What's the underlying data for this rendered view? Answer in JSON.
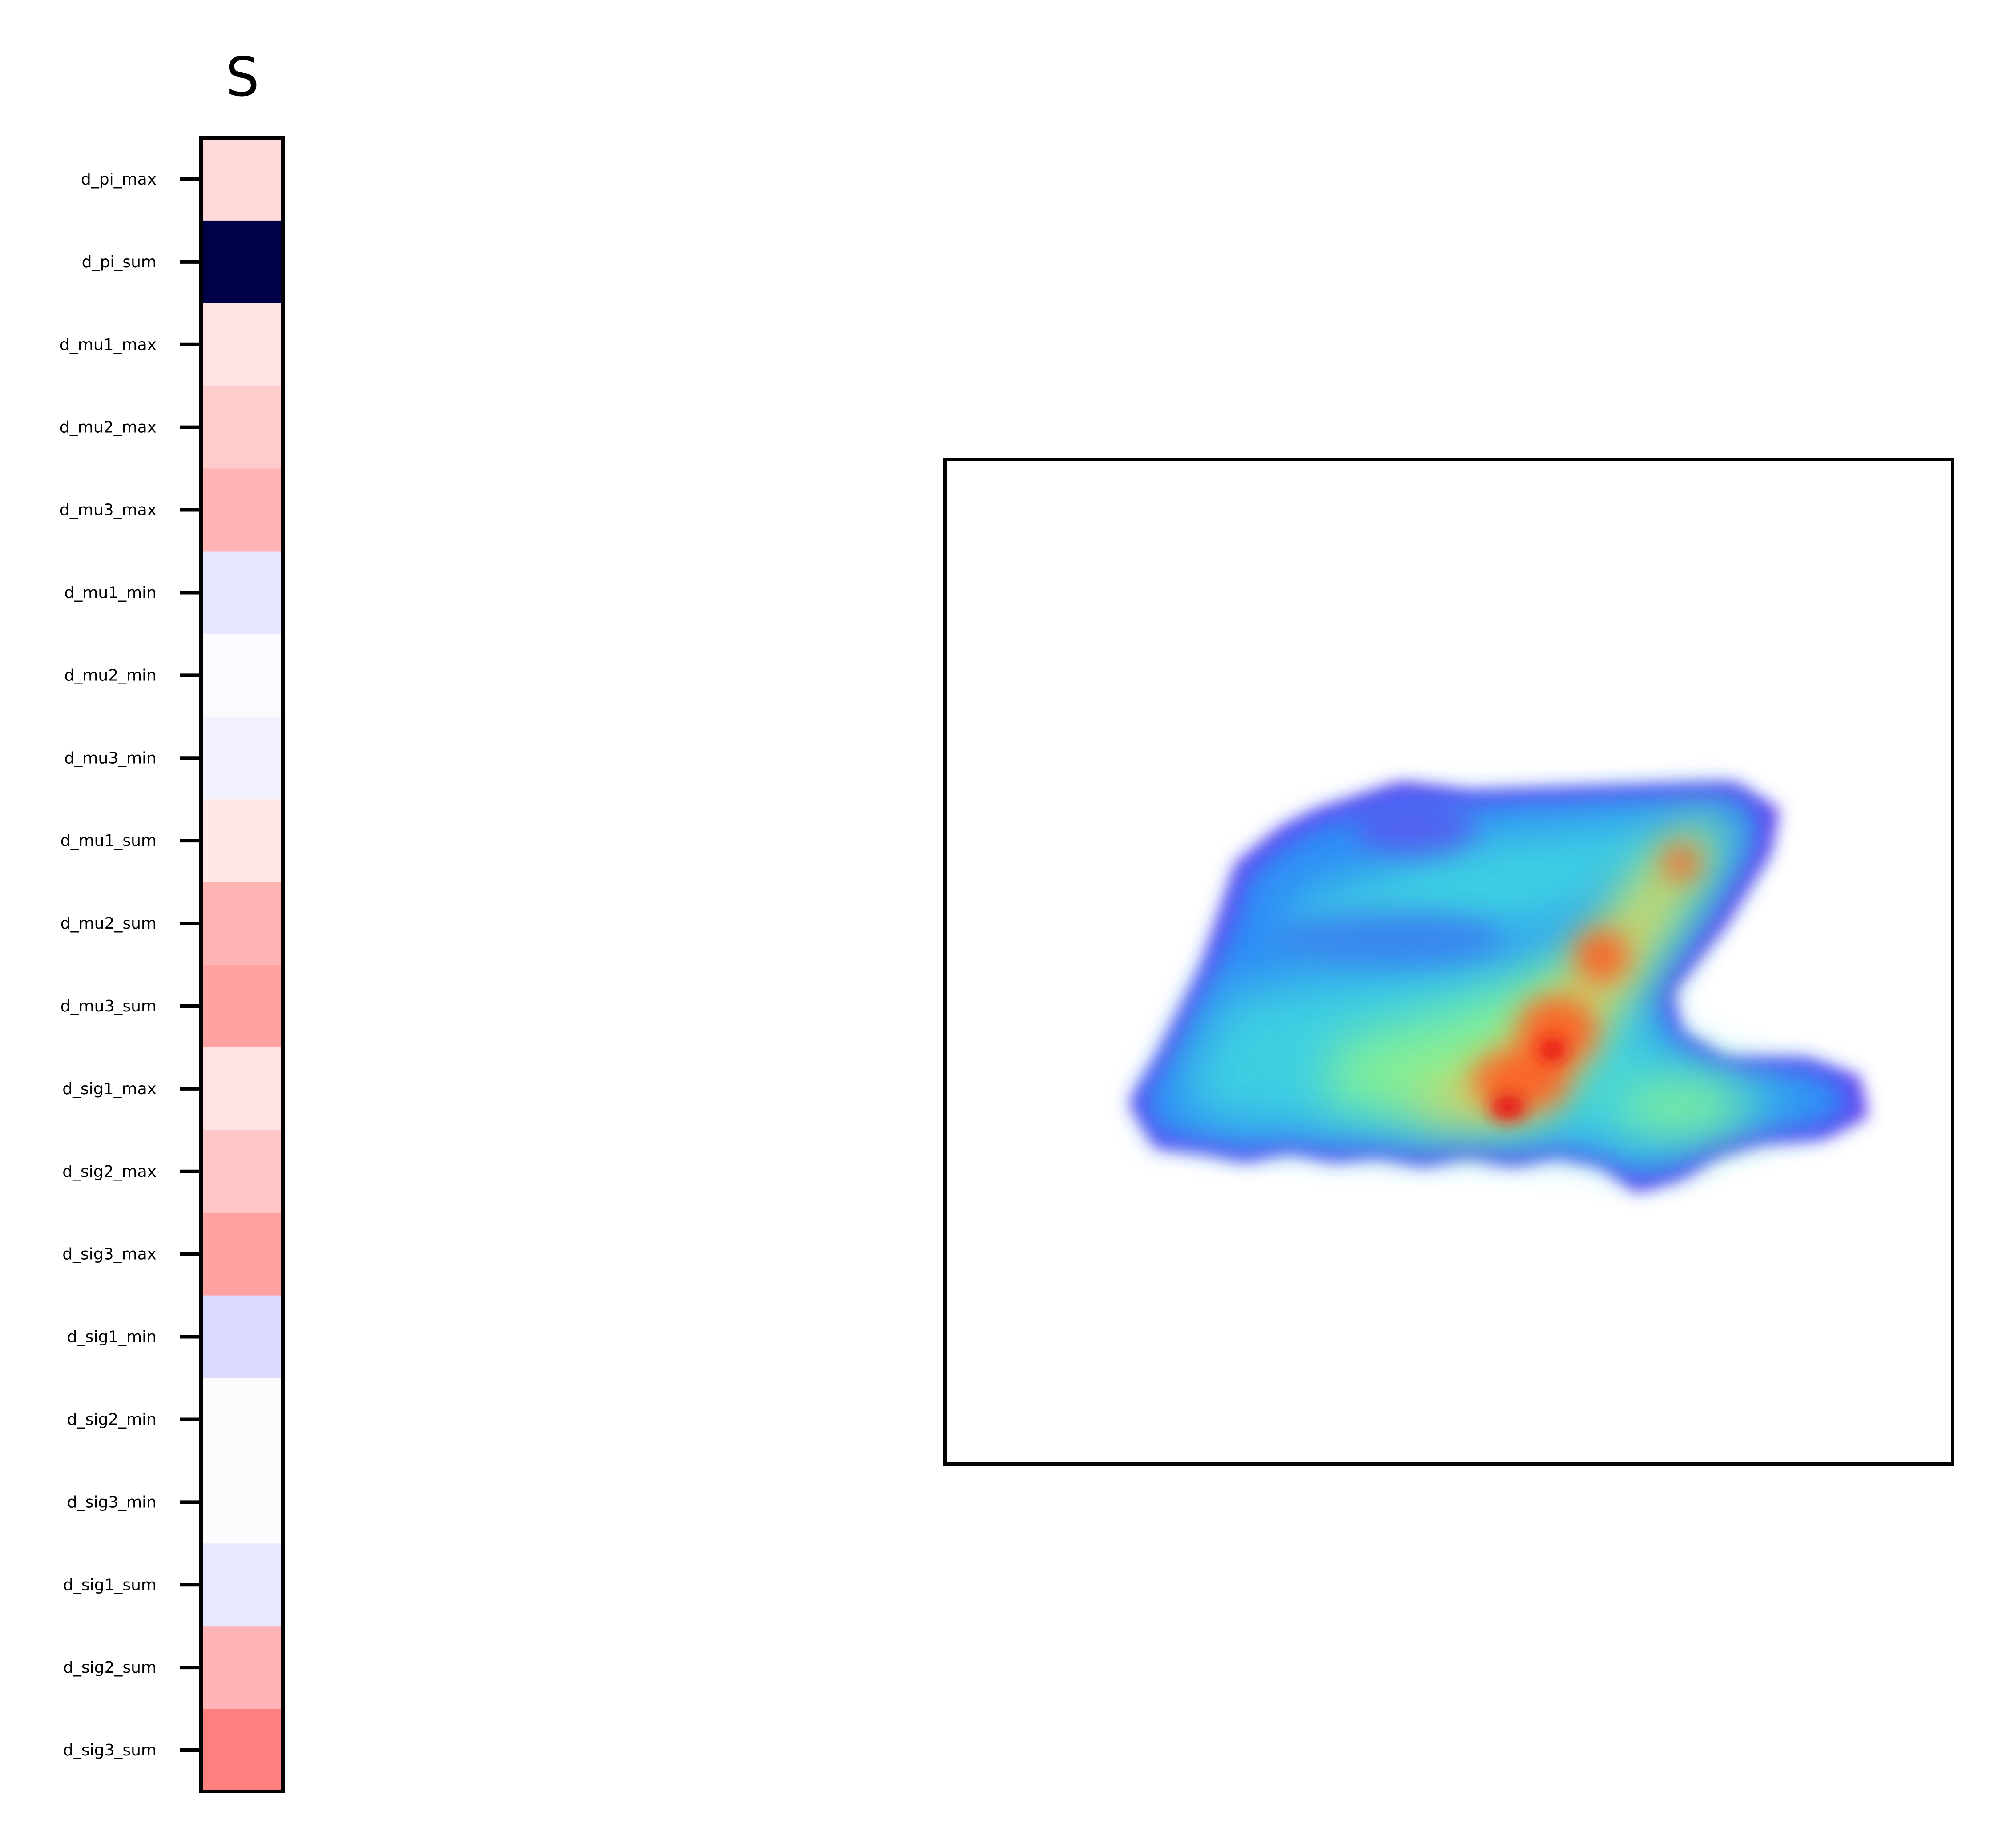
{
  "chart_data": [
    {
      "type": "heatmap",
      "title": "S",
      "columns": 1,
      "colormap": "bwr (blue-white-red)",
      "row_labels": [
        "d_pi_max",
        "d_pi_sum",
        "d_mu1_max",
        "d_mu2_max",
        "d_mu3_max",
        "d_mu1_min",
        "d_mu2_min",
        "d_mu3_min",
        "d_mu1_sum",
        "d_mu2_sum",
        "d_mu3_sum",
        "d_sig1_max",
        "d_sig2_max",
        "d_sig3_max",
        "d_sig1_min",
        "d_sig2_min",
        "d_sig3_min",
        "d_sig1_sum",
        "d_sig2_sum",
        "d_sig3_sum"
      ],
      "values": [
        0.15,
        -1.0,
        0.11,
        0.2,
        0.29,
        -0.1,
        -0.02,
        -0.05,
        0.09,
        0.3,
        0.37,
        0.11,
        0.22,
        0.37,
        -0.14,
        -0.01,
        -0.01,
        -0.09,
        0.29,
        0.5
      ],
      "value_range": [
        -1,
        1
      ],
      "grid": false
    },
    {
      "type": "heatmap",
      "title": "",
      "description_shape": "2D density of a cloud of points shaped like a slanted 'Z'",
      "colormap": "rainbow (purple-blue-cyan-green-yellow-red)",
      "axes_ticks": false,
      "grid": false
    }
  ]
}
